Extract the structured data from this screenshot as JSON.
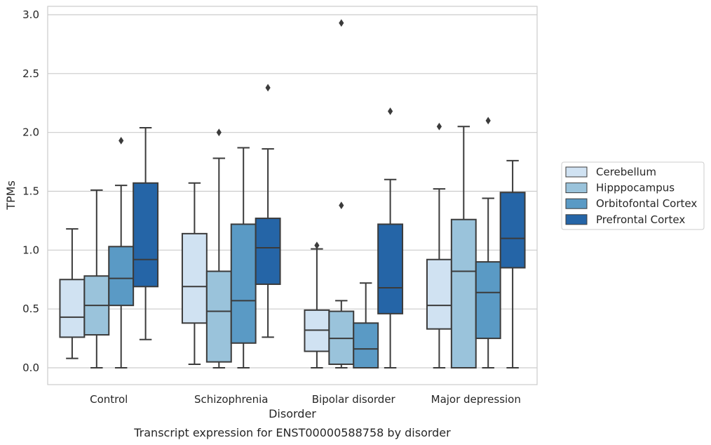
{
  "chart_data": {
    "type": "box",
    "xlabel": "Disorder",
    "ylabel": "TPMs",
    "caption": "Transcript expression for ENST00000588758 by disorder",
    "ylim": [
      -0.14,
      3.08
    ],
    "yticks": [
      0.0,
      0.5,
      1.0,
      1.5,
      2.0,
      2.5,
      3.0
    ],
    "ytick_labels": [
      "0.0",
      "0.5",
      "1.0",
      "1.5",
      "2.0",
      "2.5",
      "3.0"
    ],
    "grid": "horizontal",
    "legend_position": "right",
    "categories": [
      "Control",
      "Schizophrenia",
      "Bipolar disorder",
      "Major depression"
    ],
    "series": [
      {
        "name": "Cerebellum",
        "color": "#d0e2f2",
        "boxes": [
          {
            "min": 0.08,
            "q1": 0.26,
            "median": 0.43,
            "q3": 0.75,
            "max": 1.18,
            "outliers": []
          },
          {
            "min": 0.03,
            "q1": 0.38,
            "median": 0.69,
            "q3": 1.14,
            "max": 1.57,
            "outliers": []
          },
          {
            "min": 0.0,
            "q1": 0.14,
            "median": 0.32,
            "q3": 0.49,
            "max": 1.01,
            "outliers": [
              1.04
            ]
          },
          {
            "min": 0.0,
            "q1": 0.33,
            "median": 0.53,
            "q3": 0.92,
            "max": 1.52,
            "outliers": [
              2.05
            ]
          }
        ]
      },
      {
        "name": "Hipppocampus",
        "color": "#9ac3db",
        "boxes": [
          {
            "min": 0.0,
            "q1": 0.28,
            "median": 0.53,
            "q3": 0.78,
            "max": 1.51,
            "outliers": []
          },
          {
            "min": 0.0,
            "q1": 0.05,
            "median": 0.48,
            "q3": 0.82,
            "max": 1.78,
            "outliers": [
              2.0
            ]
          },
          {
            "min": 0.0,
            "q1": 0.03,
            "median": 0.25,
            "q3": 0.48,
            "max": 0.57,
            "outliers": [
              1.38,
              2.93
            ]
          },
          {
            "min": 0.0,
            "q1": 0.0,
            "median": 0.82,
            "q3": 1.26,
            "max": 2.05,
            "outliers": []
          }
        ]
      },
      {
        "name": "Orbitofontal Cortex",
        "color": "#5a9ac5",
        "boxes": [
          {
            "min": 0.0,
            "q1": 0.53,
            "median": 0.76,
            "q3": 1.03,
            "max": 1.55,
            "outliers": [
              1.93
            ]
          },
          {
            "min": 0.0,
            "q1": 0.21,
            "median": 0.57,
            "q3": 1.22,
            "max": 1.87,
            "outliers": []
          },
          {
            "min": 0.0,
            "q1": 0.0,
            "median": 0.16,
            "q3": 0.38,
            "max": 0.72,
            "outliers": []
          },
          {
            "min": 0.0,
            "q1": 0.25,
            "median": 0.64,
            "q3": 0.9,
            "max": 1.44,
            "outliers": [
              2.1
            ]
          }
        ]
      },
      {
        "name": "Prefrontal Cortex",
        "color": "#2565a7",
        "boxes": [
          {
            "min": 0.24,
            "q1": 0.69,
            "median": 0.92,
            "q3": 1.57,
            "max": 2.04,
            "outliers": []
          },
          {
            "min": 0.26,
            "q1": 0.71,
            "median": 1.02,
            "q3": 1.27,
            "max": 1.86,
            "outliers": [
              2.38
            ]
          },
          {
            "min": 0.0,
            "q1": 0.46,
            "median": 0.68,
            "q3": 1.22,
            "max": 1.6,
            "outliers": [
              2.18
            ]
          },
          {
            "min": 0.0,
            "q1": 0.85,
            "median": 1.1,
            "q3": 1.49,
            "max": 1.76,
            "outliers": []
          }
        ]
      }
    ]
  }
}
